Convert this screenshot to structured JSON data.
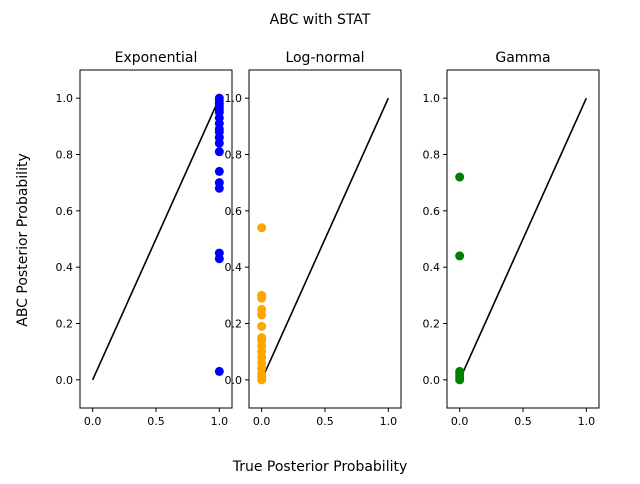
{
  "figure": {
    "suptitle": "ABC with STAT",
    "xlabel": "True Posterior Probability",
    "ylabel": "ABC Posterior Probability"
  },
  "chart_data": [
    {
      "type": "scatter",
      "title": "Exponential",
      "color": "#0000ff",
      "xlim": [
        -0.1,
        1.1
      ],
      "ylim": [
        -0.1,
        1.1
      ],
      "xticks": [
        "0.0",
        "0.5",
        "1.0"
      ],
      "yticks": [
        "0.0",
        "0.2",
        "0.4",
        "0.6",
        "0.8",
        "1.0"
      ],
      "reference_line": [
        [
          0,
          0
        ],
        [
          1,
          1
        ]
      ],
      "points": [
        [
          1.0,
          1.0
        ],
        [
          1.0,
          0.99
        ],
        [
          1.0,
          0.98
        ],
        [
          1.0,
          0.97
        ],
        [
          1.0,
          0.96
        ],
        [
          1.0,
          0.95
        ],
        [
          1.0,
          0.93
        ],
        [
          1.0,
          0.91
        ],
        [
          1.0,
          0.89
        ],
        [
          1.0,
          0.88
        ],
        [
          1.0,
          0.86
        ],
        [
          1.0,
          0.84
        ],
        [
          1.0,
          0.81
        ],
        [
          1.0,
          0.74
        ],
        [
          1.0,
          0.7
        ],
        [
          1.0,
          0.68
        ],
        [
          1.0,
          0.45
        ],
        [
          1.0,
          0.43
        ],
        [
          1.0,
          0.03
        ]
      ]
    },
    {
      "type": "scatter",
      "title": "Log-normal",
      "color": "#ffa500",
      "xlim": [
        -0.1,
        1.1
      ],
      "ylim": [
        -0.1,
        1.1
      ],
      "xticks": [
        "0.0",
        "0.5",
        "1.0"
      ],
      "yticks": [
        "0.0",
        "0.2",
        "0.4",
        "0.6",
        "0.8",
        "1.0"
      ],
      "reference_line": [
        [
          0,
          0
        ],
        [
          1,
          1
        ]
      ],
      "points": [
        [
          0.0,
          0.54
        ],
        [
          0.0,
          0.3
        ],
        [
          0.0,
          0.29
        ],
        [
          0.0,
          0.25
        ],
        [
          0.0,
          0.23
        ],
        [
          0.0,
          0.19
        ],
        [
          0.0,
          0.15
        ],
        [
          0.0,
          0.14
        ],
        [
          0.0,
          0.12
        ],
        [
          0.0,
          0.1
        ],
        [
          0.0,
          0.08
        ],
        [
          0.0,
          0.06
        ],
        [
          0.0,
          0.04
        ],
        [
          0.0,
          0.02
        ],
        [
          0.0,
          0.01
        ],
        [
          0.0,
          0.0
        ]
      ]
    },
    {
      "type": "scatter",
      "title": "Gamma",
      "color": "#008000",
      "xlim": [
        -0.1,
        1.1
      ],
      "ylim": [
        -0.1,
        1.1
      ],
      "xticks": [
        "0.0",
        "0.5",
        "1.0"
      ],
      "yticks": [
        "0.0",
        "0.2",
        "0.4",
        "0.6",
        "0.8",
        "1.0"
      ],
      "reference_line": [
        [
          0,
          0
        ],
        [
          1,
          1
        ]
      ],
      "points": [
        [
          0.0,
          0.72
        ],
        [
          0.0,
          0.44
        ],
        [
          0.0,
          0.03
        ],
        [
          0.0,
          0.02
        ],
        [
          0.0,
          0.01
        ],
        [
          0.0,
          0.0
        ]
      ]
    }
  ]
}
